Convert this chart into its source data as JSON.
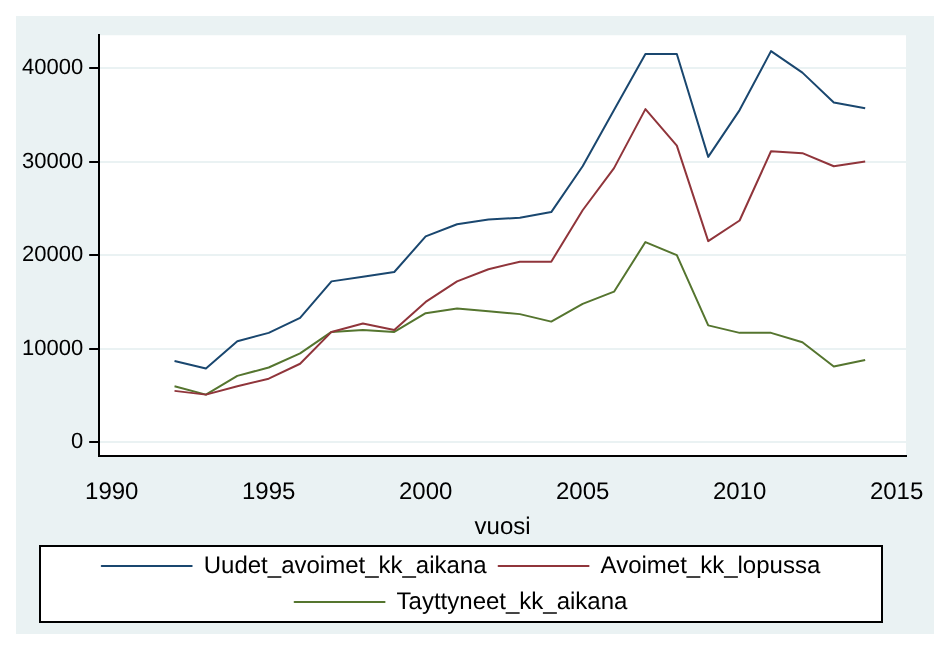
{
  "chart_data": {
    "type": "line",
    "xlabel": "vuosi",
    "x": [
      1992,
      1993,
      1994,
      1995,
      1996,
      1997,
      1998,
      1999,
      2000,
      2001,
      2002,
      2003,
      2004,
      2005,
      2006,
      2007,
      2008,
      2009,
      2010,
      2011,
      2012,
      2013,
      2014
    ],
    "xlim": [
      1989.6,
      2015.3
    ],
    "xticks": [
      1990,
      1995,
      2000,
      2005,
      2010,
      2015
    ],
    "ylim": [
      -1500,
      43500
    ],
    "yticks": [
      0,
      10000,
      20000,
      30000,
      40000
    ],
    "grid": "y",
    "legend": "bottom",
    "marker": "none",
    "line_style": "solid",
    "series": [
      {
        "name": "Uudet_avoimet_kk_aikana",
        "color": "#1a476f",
        "values": [
          8700,
          7900,
          10800,
          11700,
          13300,
          17200,
          17700,
          18200,
          22000,
          23300,
          23800,
          24000,
          24600,
          29500,
          35500,
          41500,
          41500,
          30500,
          35500,
          41800,
          39500,
          36300,
          35700
        ]
      },
      {
        "name": "Avoimet_kk_lopussa",
        "color": "#90353b",
        "values": [
          5500,
          5100,
          6000,
          6800,
          8400,
          11800,
          12700,
          12000,
          15000,
          17200,
          18500,
          19300,
          19300,
          24800,
          29300,
          35600,
          31700,
          21500,
          23700,
          31100,
          30900,
          29500,
          30000
        ]
      },
      {
        "name": "Tayttyneet_kk_aikana",
        "color": "#55752f",
        "values": [
          6000,
          5100,
          7100,
          8000,
          9500,
          11800,
          12000,
          11800,
          13800,
          14300,
          14000,
          13700,
          12900,
          14800,
          16100,
          21400,
          20000,
          12500,
          11700,
          11700,
          10700,
          8100,
          8800
        ]
      }
    ]
  }
}
